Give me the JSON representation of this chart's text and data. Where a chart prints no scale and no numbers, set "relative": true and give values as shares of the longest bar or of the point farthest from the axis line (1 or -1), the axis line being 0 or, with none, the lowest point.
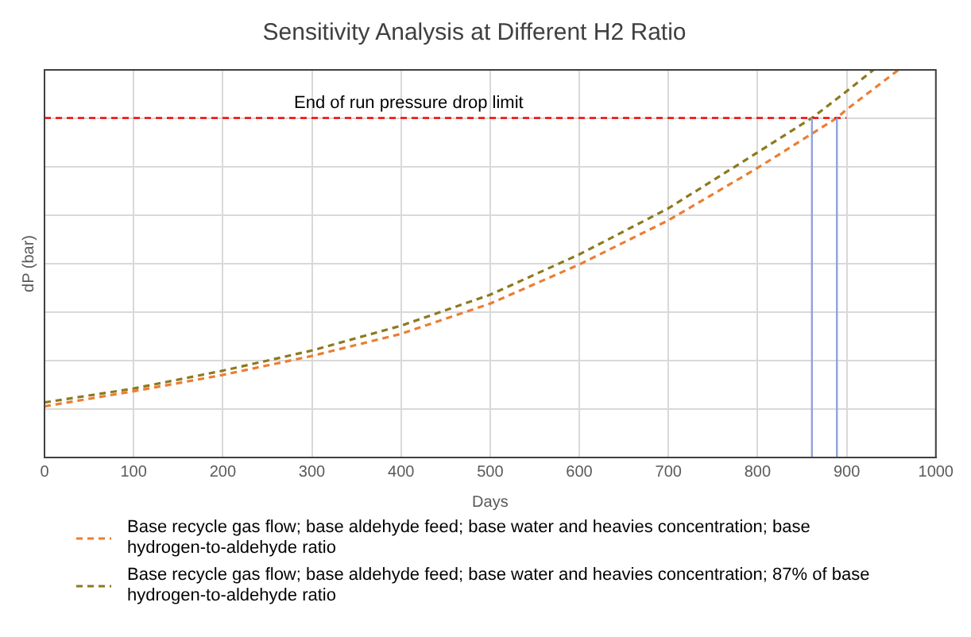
{
  "chart_data": {
    "type": "line",
    "title": "Sensitivity Analysis at Different H2 Ratio",
    "xlabel": "Days",
    "ylabel": "dP (bar)",
    "relative": true,
    "xlim": [
      0,
      1000
    ],
    "xticks": [
      0,
      100,
      200,
      300,
      400,
      500,
      600,
      700,
      800,
      900,
      1000
    ],
    "series": [
      {
        "name": "Base recycle gas flow; base aldehyde feed; base water and heavies concentration; base hydrogen-to-aldehyde ratio",
        "color": "#ed7d31",
        "x": [
          0,
          100,
          200,
          300,
          400,
          500,
          600,
          700,
          800,
          889,
          900,
          958
        ],
        "values": [
          0.132,
          0.171,
          0.213,
          0.262,
          0.319,
          0.397,
          0.498,
          0.612,
          0.747,
          0.876,
          0.898,
          1.0
        ]
      },
      {
        "name": "Base recycle gas flow; base aldehyde feed; base water and heavies concentration;  87% of base hydrogen-to-aldehyde ratio",
        "color": "#8c7a1e",
        "x": [
          0,
          100,
          200,
          300,
          400,
          500,
          600,
          700,
          800,
          861,
          900,
          930
        ],
        "values": [
          0.142,
          0.178,
          0.224,
          0.276,
          0.34,
          0.42,
          0.524,
          0.643,
          0.787,
          0.876,
          0.945,
          1.0
        ]
      }
    ],
    "ref_lines": [
      {
        "axis": "y",
        "value": 0.876,
        "label": "End of run pressure drop limit",
        "color": "#ff0000",
        "line_style": "dashed"
      },
      {
        "axis": "x",
        "value": 861,
        "color": "#8fa3d9",
        "line_style": "solid"
      },
      {
        "axis": "x",
        "value": 889,
        "color": "#8fa3d9",
        "line_style": "solid"
      }
    ],
    "grid": true,
    "legend": "bottom",
    "tick_labels": "x",
    "marker": "none",
    "line_style": "dashed"
  }
}
